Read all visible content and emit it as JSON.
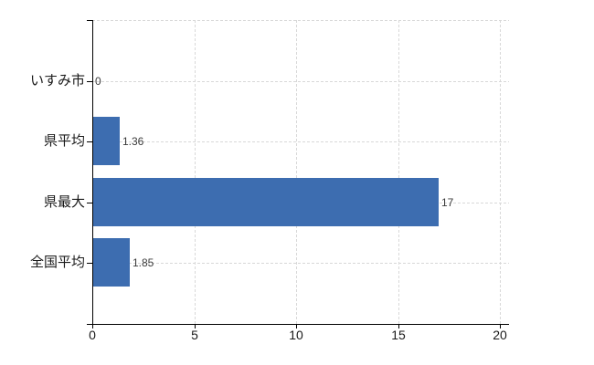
{
  "chart_data": {
    "type": "bar",
    "orientation": "horizontal",
    "title": "",
    "xlabel": "",
    "ylabel": "",
    "categories": [
      "いすみ市",
      "県平均",
      "県最大",
      "全国平均"
    ],
    "values": [
      0,
      1.36,
      17,
      1.85
    ],
    "value_labels": [
      "0",
      "1.36",
      "17",
      "1.85"
    ],
    "x_ticks": [
      0,
      5,
      10,
      15,
      20
    ],
    "x_tick_labels": [
      "0",
      "5",
      "10",
      "15",
      "20"
    ],
    "xlim": [
      0,
      20
    ],
    "grid": true,
    "legend": false,
    "colors": {
      "bar": "#3d6db0",
      "grid": "#d8d8d8",
      "axis": "#000000",
      "category_label": "#1a1a1a",
      "tick_label": "#1a1a1a",
      "value_label": "#3c3c3c",
      "background": "#ffffff"
    }
  }
}
